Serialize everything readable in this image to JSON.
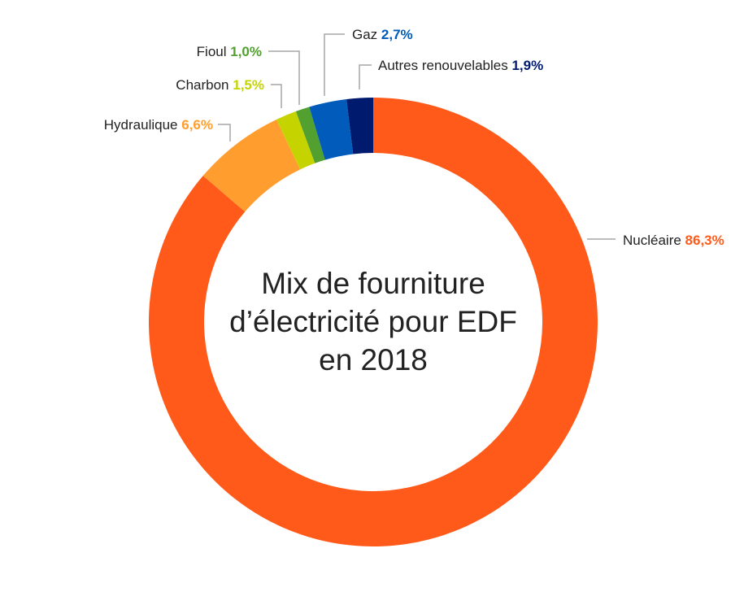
{
  "chart_data": {
    "type": "pie",
    "variant": "donut",
    "title_lines": [
      "Mix de fourniture",
      "d’électricité pour EDF",
      "en 2018"
    ],
    "start": "top",
    "direction": "clockwise",
    "slices": [
      {
        "name": "Nucléaire",
        "value": 86.3,
        "label": "86,3%",
        "color": "#FF5A19"
      },
      {
        "name": "Hydraulique",
        "value": 6.6,
        "label": "6,6%",
        "color": "#FF9E2F"
      },
      {
        "name": "Charbon",
        "value": 1.5,
        "label": "1,5%",
        "color": "#C5D400"
      },
      {
        "name": "Fioul",
        "value": 1.0,
        "label": "1,0%",
        "color": "#51A030"
      },
      {
        "name": "Gaz",
        "value": 2.7,
        "label": "2,7%",
        "color": "#005BBB"
      },
      {
        "name": "Autres renouvelables",
        "value": 1.9,
        "label": "1,9%",
        "color": "#001A6E"
      }
    ]
  }
}
